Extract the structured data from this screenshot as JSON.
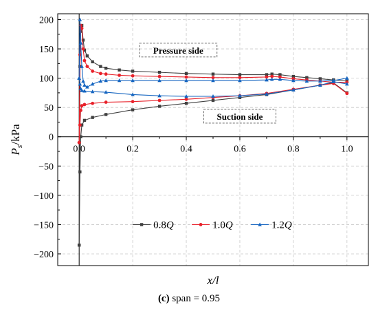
{
  "chart_data": {
    "type": "line",
    "xlabel": "x/l",
    "ylabel_main": "P",
    "ylabel_sub": "s",
    "ylabel_unit": "/kPa",
    "xlim": [
      -0.08,
      1.08
    ],
    "ylim": [
      -220,
      210
    ],
    "x_ticks": [
      0.0,
      0.2,
      0.4,
      0.6,
      0.8,
      1.0
    ],
    "x_tick_labels": [
      "0.0",
      "0.2",
      "0.4",
      "0.6",
      "0.8",
      "1.0"
    ],
    "y_ticks": [
      200,
      150,
      100,
      50,
      0,
      -50,
      -100,
      -150,
      -200
    ],
    "y_tick_labels": [
      "200",
      "150",
      "100",
      "50",
      "0",
      "−50",
      "−100",
      "−150",
      "−200"
    ],
    "grid": true,
    "legend_position": "bottom-center",
    "annotations": [
      {
        "text": "Pressure side",
        "x": 0.37,
        "y": 148
      },
      {
        "text": "Suction side",
        "x": 0.6,
        "y": 35
      }
    ],
    "series": [
      {
        "name": "0.8Q",
        "label_main": "0.8",
        "label_italic": "Q",
        "color": "#404040",
        "marker": "square",
        "pressure_side": {
          "x": [
            0.0,
            0.003,
            0.006,
            0.01,
            0.015,
            0.02,
            0.03,
            0.05,
            0.08,
            0.1,
            0.15,
            0.2,
            0.3,
            0.4,
            0.5,
            0.6,
            0.7,
            0.72,
            0.75,
            0.8,
            0.85,
            0.9,
            0.95,
            1.0
          ],
          "y": [
            -185,
            120,
            180,
            190,
            165,
            148,
            138,
            128,
            120,
            117,
            114,
            112,
            110,
            108,
            107,
            106,
            106,
            107,
            106,
            103,
            101,
            99,
            97,
            95
          ]
        },
        "suction_side": {
          "x": [
            0.0,
            0.003,
            0.006,
            0.01,
            0.02,
            0.05,
            0.1,
            0.2,
            0.3,
            0.4,
            0.5,
            0.6,
            0.7,
            0.8,
            0.9,
            0.95,
            1.0
          ],
          "y": [
            -185,
            -60,
            0,
            20,
            28,
            33,
            38,
            46,
            52,
            57,
            62,
            67,
            72,
            80,
            88,
            92,
            75
          ]
        }
      },
      {
        "name": "1.0Q",
        "label_main": "1.0",
        "label_italic": "Q",
        "color": "#e8212a",
        "marker": "circle",
        "pressure_side": {
          "x": [
            0.0,
            0.003,
            0.006,
            0.01,
            0.015,
            0.02,
            0.03,
            0.05,
            0.08,
            0.1,
            0.15,
            0.2,
            0.3,
            0.4,
            0.5,
            0.6,
            0.7,
            0.72,
            0.75,
            0.8,
            0.85,
            0.9,
            0.95,
            1.0
          ],
          "y": [
            -10,
            140,
            190,
            185,
            150,
            130,
            120,
            112,
            108,
            107,
            105,
            104,
            103,
            102,
            101,
            101,
            102,
            103,
            102,
            99,
            97,
            95,
            93,
            93
          ]
        },
        "suction_side": {
          "x": [
            0.0,
            0.003,
            0.006,
            0.01,
            0.02,
            0.05,
            0.1,
            0.2,
            0.3,
            0.4,
            0.5,
            0.6,
            0.7,
            0.8,
            0.9,
            0.95,
            1.0
          ],
          "y": [
            -10,
            20,
            45,
            53,
            55,
            57,
            59,
            60,
            62,
            64,
            67,
            70,
            74,
            81,
            88,
            91,
            74
          ]
        }
      },
      {
        "name": "1.2Q",
        "label_main": "1.2",
        "label_italic": "Q",
        "color": "#1565c0",
        "marker": "triangle",
        "pressure_side": {
          "x": [
            0.0,
            0.003,
            0.006,
            0.01,
            0.015,
            0.02,
            0.03,
            0.05,
            0.08,
            0.1,
            0.15,
            0.2,
            0.3,
            0.4,
            0.5,
            0.6,
            0.7,
            0.72,
            0.75,
            0.8,
            0.85,
            0.9,
            0.95,
            1.0
          ],
          "y": [
            100,
            200,
            160,
            120,
            95,
            88,
            85,
            90,
            95,
            96,
            96,
            96,
            96,
            96,
            96,
            96,
            97,
            98,
            98,
            96,
            95,
            95,
            96,
            100
          ]
        },
        "suction_side": {
          "x": [
            0.0,
            0.003,
            0.006,
            0.01,
            0.02,
            0.05,
            0.1,
            0.2,
            0.3,
            0.4,
            0.5,
            0.6,
            0.7,
            0.8,
            0.9,
            0.95,
            1.0
          ],
          "y": [
            100,
            90,
            82,
            79,
            78,
            77,
            76,
            72,
            70,
            69,
            69,
            70,
            73,
            80,
            88,
            94,
            90
          ]
        }
      }
    ]
  },
  "caption": {
    "label": "(c)",
    "text": " span = 0.95"
  }
}
